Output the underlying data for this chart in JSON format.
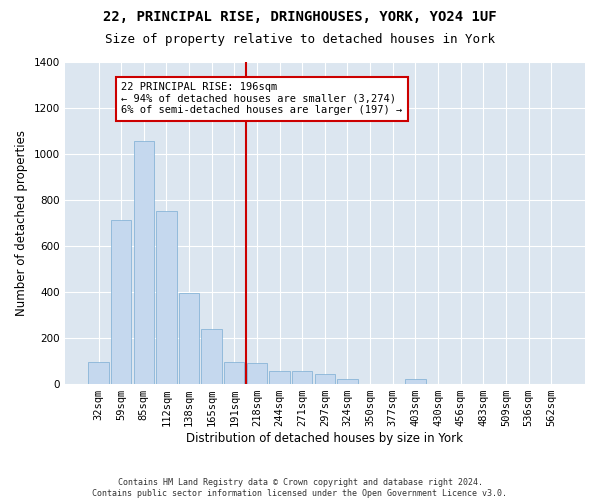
{
  "title1": "22, PRINCIPAL RISE, DRINGHOUSES, YORK, YO24 1UF",
  "title2": "Size of property relative to detached houses in York",
  "xlabel": "Distribution of detached houses by size in York",
  "ylabel": "Number of detached properties",
  "categories": [
    "32sqm",
    "59sqm",
    "85sqm",
    "112sqm",
    "138sqm",
    "165sqm",
    "191sqm",
    "218sqm",
    "244sqm",
    "271sqm",
    "297sqm",
    "324sqm",
    "350sqm",
    "377sqm",
    "403sqm",
    "430sqm",
    "456sqm",
    "483sqm",
    "509sqm",
    "536sqm",
    "562sqm"
  ],
  "values": [
    95,
    710,
    1055,
    750,
    395,
    240,
    95,
    90,
    55,
    55,
    45,
    20,
    0,
    0,
    20,
    0,
    0,
    0,
    0,
    0,
    0
  ],
  "bar_color": "#c5d8ee",
  "bar_edge_color": "#7aadd4",
  "background_color": "#dce6f0",
  "grid_color": "#ffffff",
  "vline_x_index": 6.5,
  "vline_color": "#cc0000",
  "annotation_text": "22 PRINCIPAL RISE: 196sqm\n← 94% of detached houses are smaller (3,274)\n6% of semi-detached houses are larger (197) →",
  "annotation_box_color": "#ffffff",
  "annotation_box_edge_color": "#cc0000",
  "ylim": [
    0,
    1400
  ],
  "yticks": [
    0,
    200,
    400,
    600,
    800,
    1000,
    1200,
    1400
  ],
  "footnote": "Contains HM Land Registry data © Crown copyright and database right 2024.\nContains public sector information licensed under the Open Government Licence v3.0.",
  "fig_bg": "#ffffff",
  "title1_fontsize": 10,
  "title2_fontsize": 9,
  "xlabel_fontsize": 8.5,
  "ylabel_fontsize": 8.5,
  "annot_fontsize": 7.5,
  "tick_fontsize": 7.5,
  "footnote_fontsize": 6.0
}
